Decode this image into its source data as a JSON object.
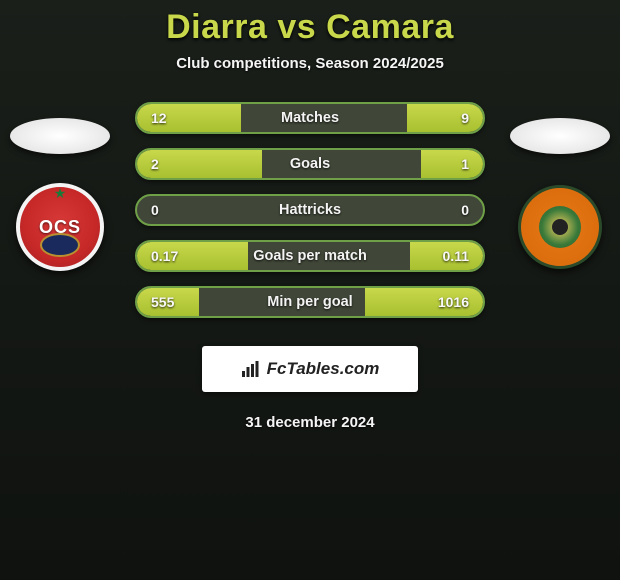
{
  "header": {
    "title": "Diarra vs Camara",
    "subtitle": "Club competitions, Season 2024/2025"
  },
  "player_left": {
    "badge_text": "OCS"
  },
  "player_right": {},
  "stats": {
    "rows": [
      {
        "label": "Matches",
        "left_val": "12",
        "right_val": "9",
        "left_pct": 30,
        "right_pct": 22
      },
      {
        "label": "Goals",
        "left_val": "2",
        "right_val": "1",
        "left_pct": 36,
        "right_pct": 18
      },
      {
        "label": "Hattricks",
        "left_val": "0",
        "right_val": "0",
        "left_pct": 0,
        "right_pct": 0
      },
      {
        "label": "Goals per match",
        "left_val": "0.17",
        "right_val": "0.11",
        "left_pct": 32,
        "right_pct": 21
      },
      {
        "label": "Min per goal",
        "left_val": "555",
        "right_val": "1016",
        "left_pct": 18,
        "right_pct": 34
      }
    ],
    "bar_bg": "#404738",
    "bar_border": "#6fa048",
    "fill_gradient_top": "#c8d84a",
    "fill_gradient_bottom": "#a8c030"
  },
  "brand": {
    "text": "FcTables.com"
  },
  "footer": {
    "date": "31 december 2024"
  },
  "colors": {
    "title": "#c8d84a",
    "text": "#f5f5f5",
    "bg_top": "#1a1f1a",
    "bg_bottom": "#0f120f"
  }
}
